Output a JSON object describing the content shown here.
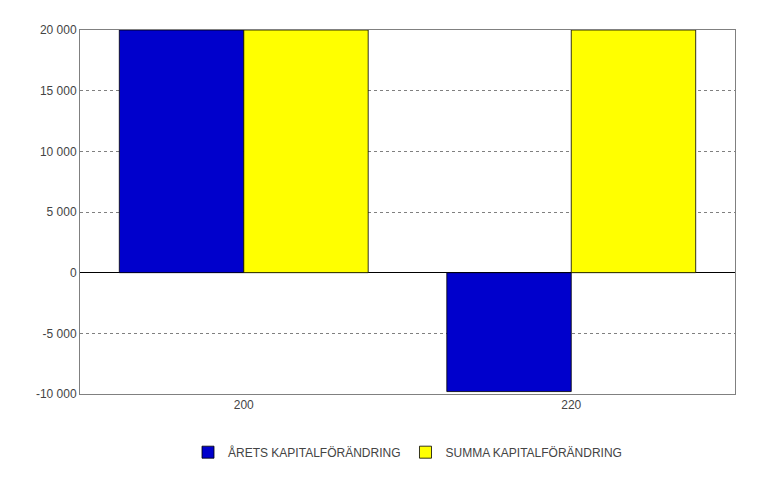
{
  "chart_data": {
    "type": "bar",
    "categories": [
      "200",
      "220"
    ],
    "series": [
      {
        "name": "ÅRETS KAPITALFÖRÄNDRING",
        "color": "#0000CC",
        "values": [
          20000,
          -9800
        ]
      },
      {
        "name": "SUMMA KAPITALFÖRÄNDRING",
        "color": "#FFFF00",
        "values": [
          20000,
          20000
        ]
      }
    ],
    "ylim": [
      -10000,
      20000
    ],
    "yticks": [
      {
        "value": -10000,
        "label": "-10 000"
      },
      {
        "value": -5000,
        "label": "-5 000"
      },
      0,
      {
        "value": 5000,
        "label": "5 000"
      },
      {
        "value": 10000,
        "label": "10 000"
      },
      {
        "value": 15000,
        "label": "15 000"
      },
      {
        "value": 20000,
        "label": "20 000"
      }
    ],
    "grid": true,
    "legend": "bottom"
  }
}
